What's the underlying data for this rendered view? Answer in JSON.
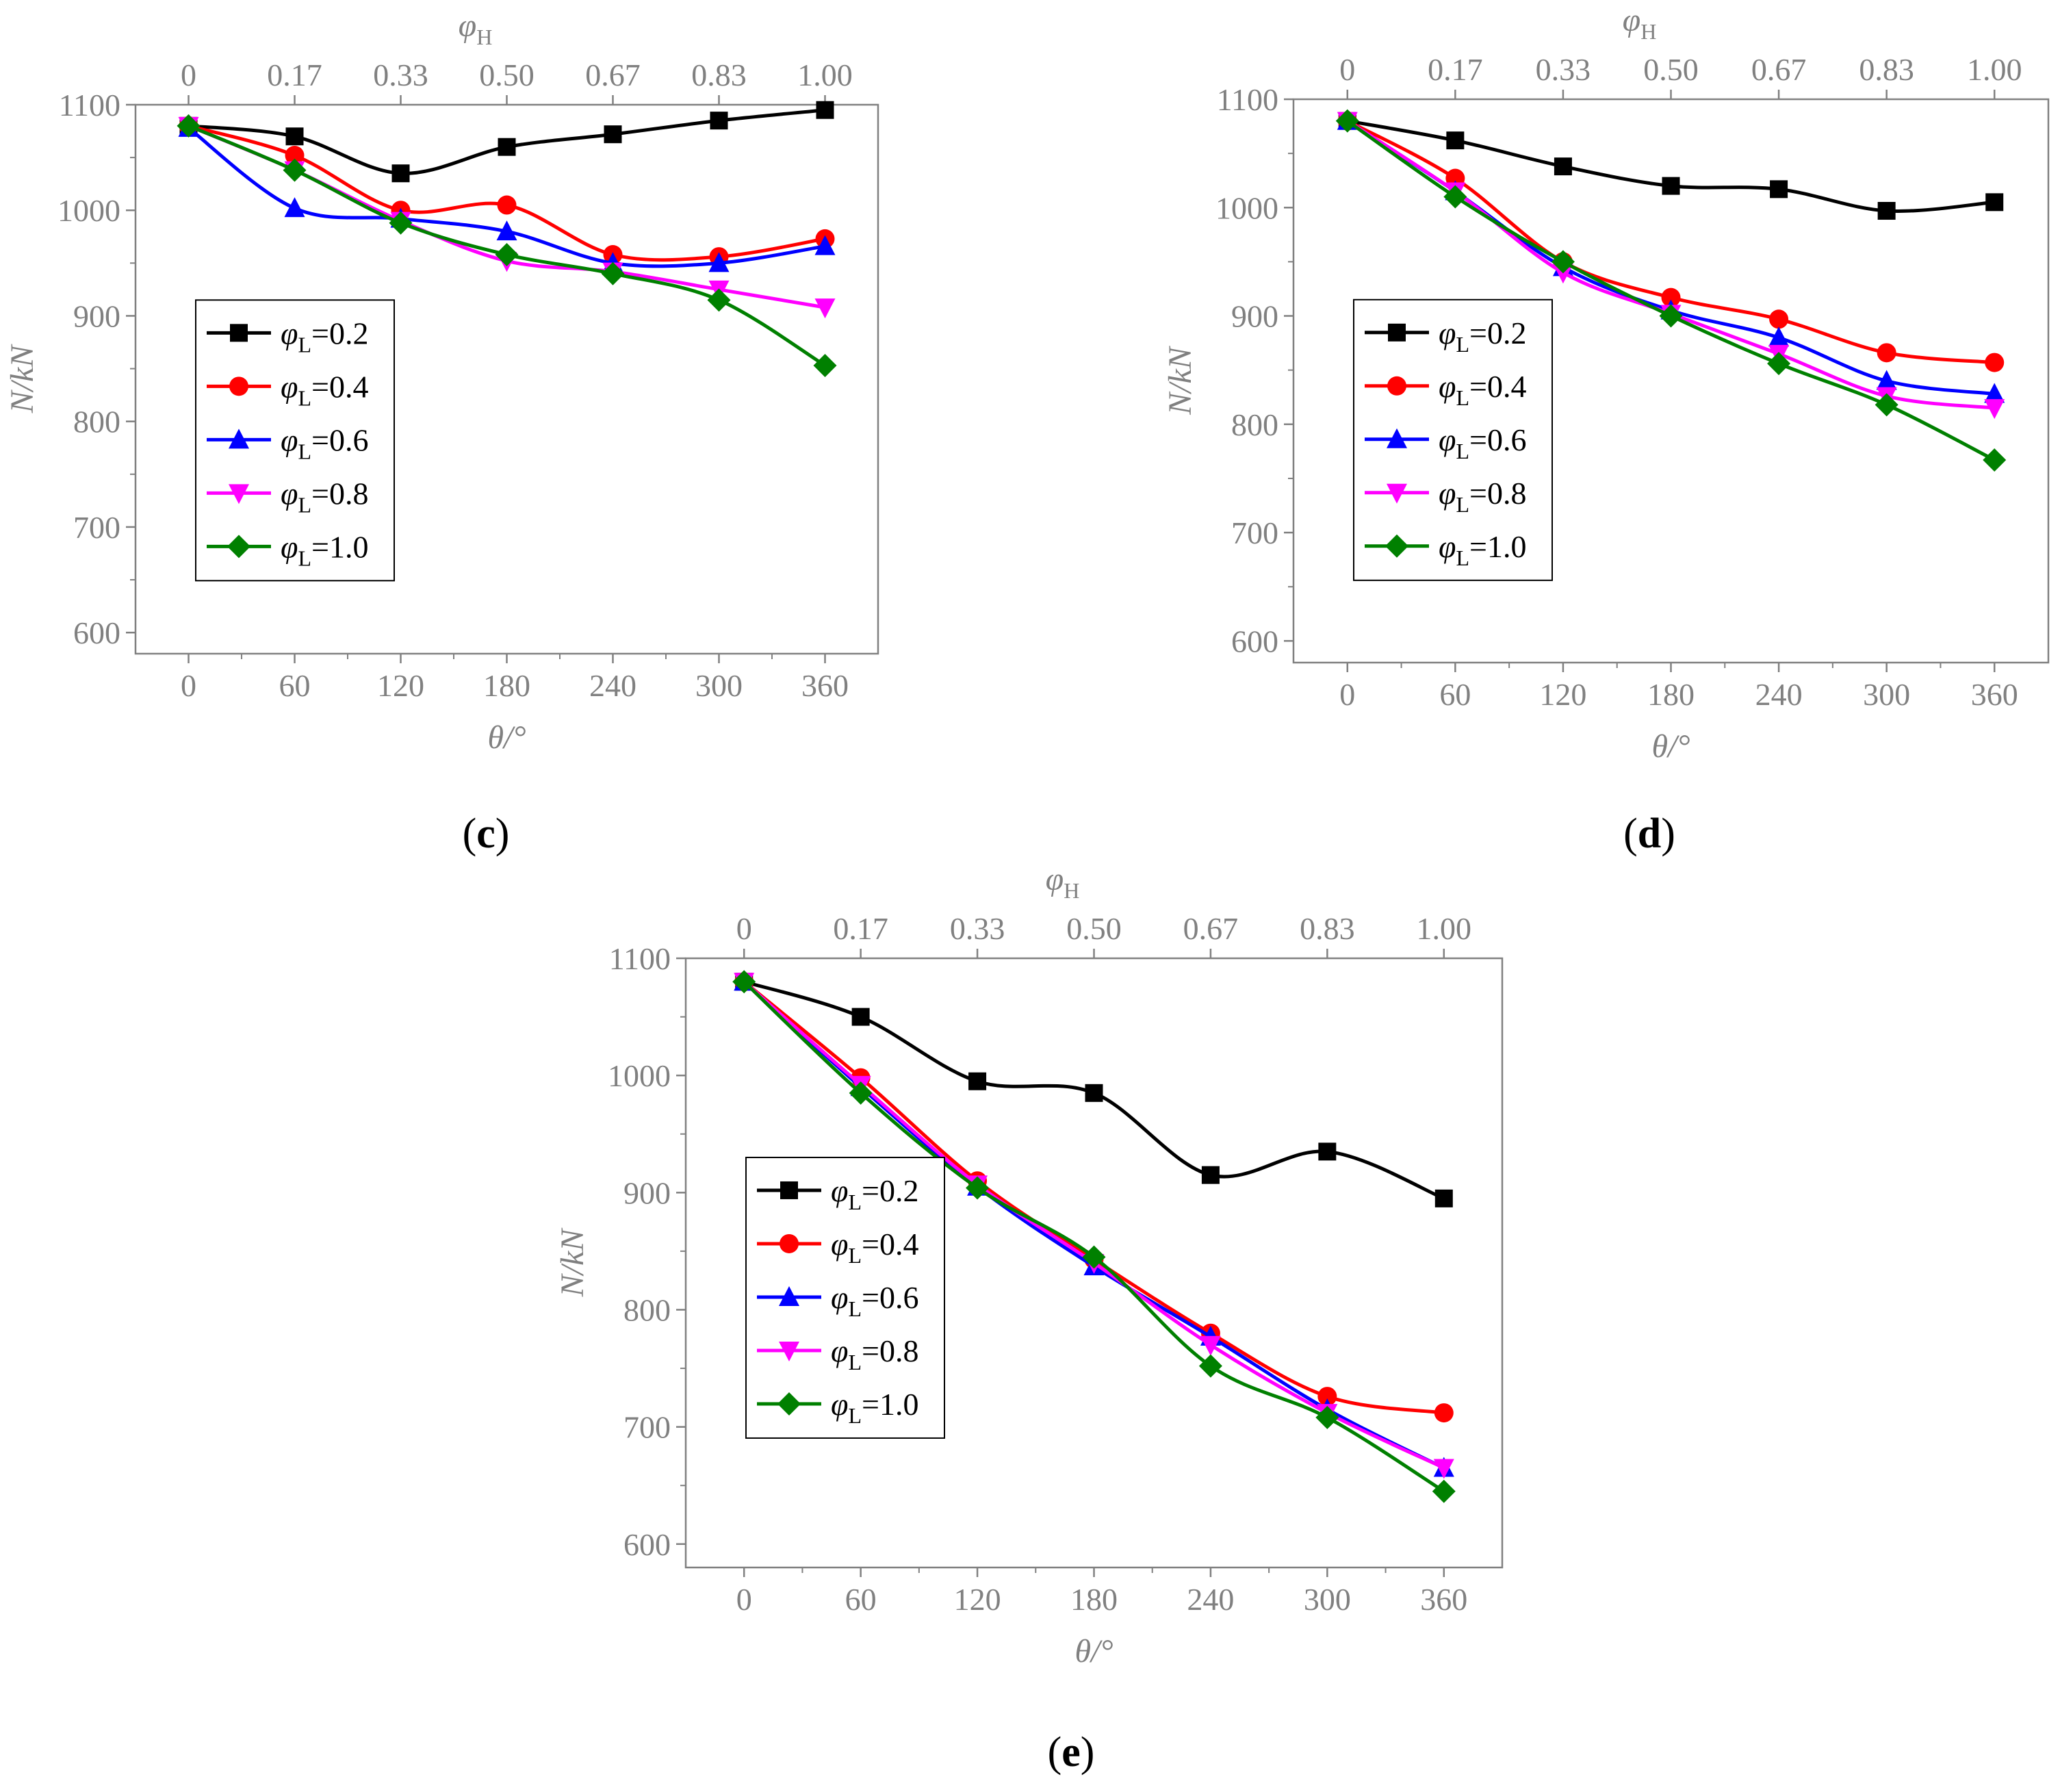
{
  "chart_data": [
    {
      "panel": "(c)",
      "type": "line",
      "xlabel": "θ/°",
      "ylabel": "N/kN",
      "top_axis_label": "φH",
      "x": [
        0,
        60,
        120,
        180,
        240,
        300,
        360
      ],
      "x_tick_labels": [
        "0",
        "60",
        "120",
        "180",
        "240",
        "300",
        "360"
      ],
      "top_tick_labels": [
        "0",
        "0.17",
        "0.33",
        "0.50",
        "0.67",
        "0.83",
        "1.00"
      ],
      "y_ticks": [
        "600",
        "700",
        "800",
        "900",
        "1000",
        "1100"
      ],
      "xlim": [
        -30,
        390
      ],
      "ylim": [
        580,
        1100
      ],
      "grid": false,
      "legend_position": "lower-left",
      "series": [
        {
          "name": "φL=0.2",
          "marker": "square",
          "color": "#000000",
          "values": [
            1080,
            1070,
            1035,
            1060,
            1072,
            1085,
            1095
          ]
        },
        {
          "name": "φL=0.4",
          "marker": "circle",
          "color": "#ff0000",
          "values": [
            1080,
            1052,
            1000,
            1005,
            958,
            956,
            973
          ]
        },
        {
          "name": "φL=0.6",
          "marker": "triangle-up",
          "color": "#0000ff",
          "values": [
            1078,
            1002,
            992,
            980,
            950,
            950,
            966
          ]
        },
        {
          "name": "φL=0.8",
          "marker": "triangle-down",
          "color": "#ff00ff",
          "values": [
            1080,
            1038,
            990,
            952,
            942,
            925,
            908
          ]
        },
        {
          "name": "φL=1.0",
          "marker": "diamond",
          "color": "#008000",
          "values": [
            1080,
            1038,
            988,
            958,
            940,
            915,
            853
          ]
        }
      ]
    },
    {
      "panel": "(d)",
      "type": "line",
      "xlabel": "θ/°",
      "ylabel": "N/kN",
      "top_axis_label": "φH",
      "x": [
        0,
        60,
        120,
        180,
        240,
        300,
        360
      ],
      "x_tick_labels": [
        "0",
        "60",
        "120",
        "180",
        "240",
        "300",
        "360"
      ],
      "top_tick_labels": [
        "0",
        "0.17",
        "0.33",
        "0.50",
        "0.67",
        "0.83",
        "1.00"
      ],
      "y_ticks": [
        "600",
        "700",
        "800",
        "900",
        "1000",
        "1100"
      ],
      "xlim": [
        -30,
        390
      ],
      "ylim": [
        580,
        1100
      ],
      "grid": false,
      "legend_position": "lower-left",
      "series": [
        {
          "name": "φL=0.2",
          "marker": "square",
          "color": "#000000",
          "values": [
            1080,
            1062,
            1038,
            1020,
            1017,
            997,
            1005
          ]
        },
        {
          "name": "φL=0.4",
          "marker": "circle",
          "color": "#ff0000",
          "values": [
            1080,
            1027,
            950,
            917,
            897,
            866,
            857
          ]
        },
        {
          "name": "φL=0.6",
          "marker": "triangle-up",
          "color": "#0000ff",
          "values": [
            1080,
            1015,
            945,
            905,
            880,
            840,
            828
          ]
        },
        {
          "name": "φL=0.8",
          "marker": "triangle-down",
          "color": "#ff00ff",
          "values": [
            1080,
            1015,
            940,
            902,
            865,
            826,
            815
          ]
        },
        {
          "name": "φL=1.0",
          "marker": "diamond",
          "color": "#008000",
          "values": [
            1080,
            1010,
            950,
            900,
            856,
            818,
            767
          ]
        }
      ]
    },
    {
      "panel": "(e)",
      "type": "line",
      "xlabel": "θ/°",
      "ylabel": "N/kN",
      "top_axis_label": "φH",
      "x": [
        0,
        60,
        120,
        180,
        240,
        300,
        360
      ],
      "x_tick_labels": [
        "0",
        "60",
        "120",
        "180",
        "240",
        "300",
        "360"
      ],
      "top_tick_labels": [
        "0",
        "0.17",
        "0.33",
        "0.50",
        "0.67",
        "0.83",
        "1.00"
      ],
      "y_ticks": [
        "600",
        "700",
        "800",
        "900",
        "1000",
        "1100"
      ],
      "xlim": [
        -30,
        390
      ],
      "ylim": [
        580,
        1100
      ],
      "grid": false,
      "legend_position": "lower-left",
      "series": [
        {
          "name": "φL=0.2",
          "marker": "square",
          "color": "#000000",
          "values": [
            1080,
            1050,
            995,
            985,
            915,
            935,
            895
          ]
        },
        {
          "name": "φL=0.4",
          "marker": "circle",
          "color": "#ff0000",
          "values": [
            1080,
            998,
            910,
            843,
            780,
            726,
            712
          ]
        },
        {
          "name": "φL=0.6",
          "marker": "triangle-up",
          "color": "#0000ff",
          "values": [
            1080,
            990,
            905,
            837,
            777,
            715,
            665
          ]
        },
        {
          "name": "φL=0.8",
          "marker": "triangle-down",
          "color": "#ff00ff",
          "values": [
            1080,
            992,
            907,
            840,
            770,
            712,
            665
          ]
        },
        {
          "name": "φL=1.0",
          "marker": "diamond",
          "color": "#008000",
          "values": [
            1080,
            985,
            904,
            845,
            752,
            708,
            645
          ]
        }
      ]
    }
  ]
}
